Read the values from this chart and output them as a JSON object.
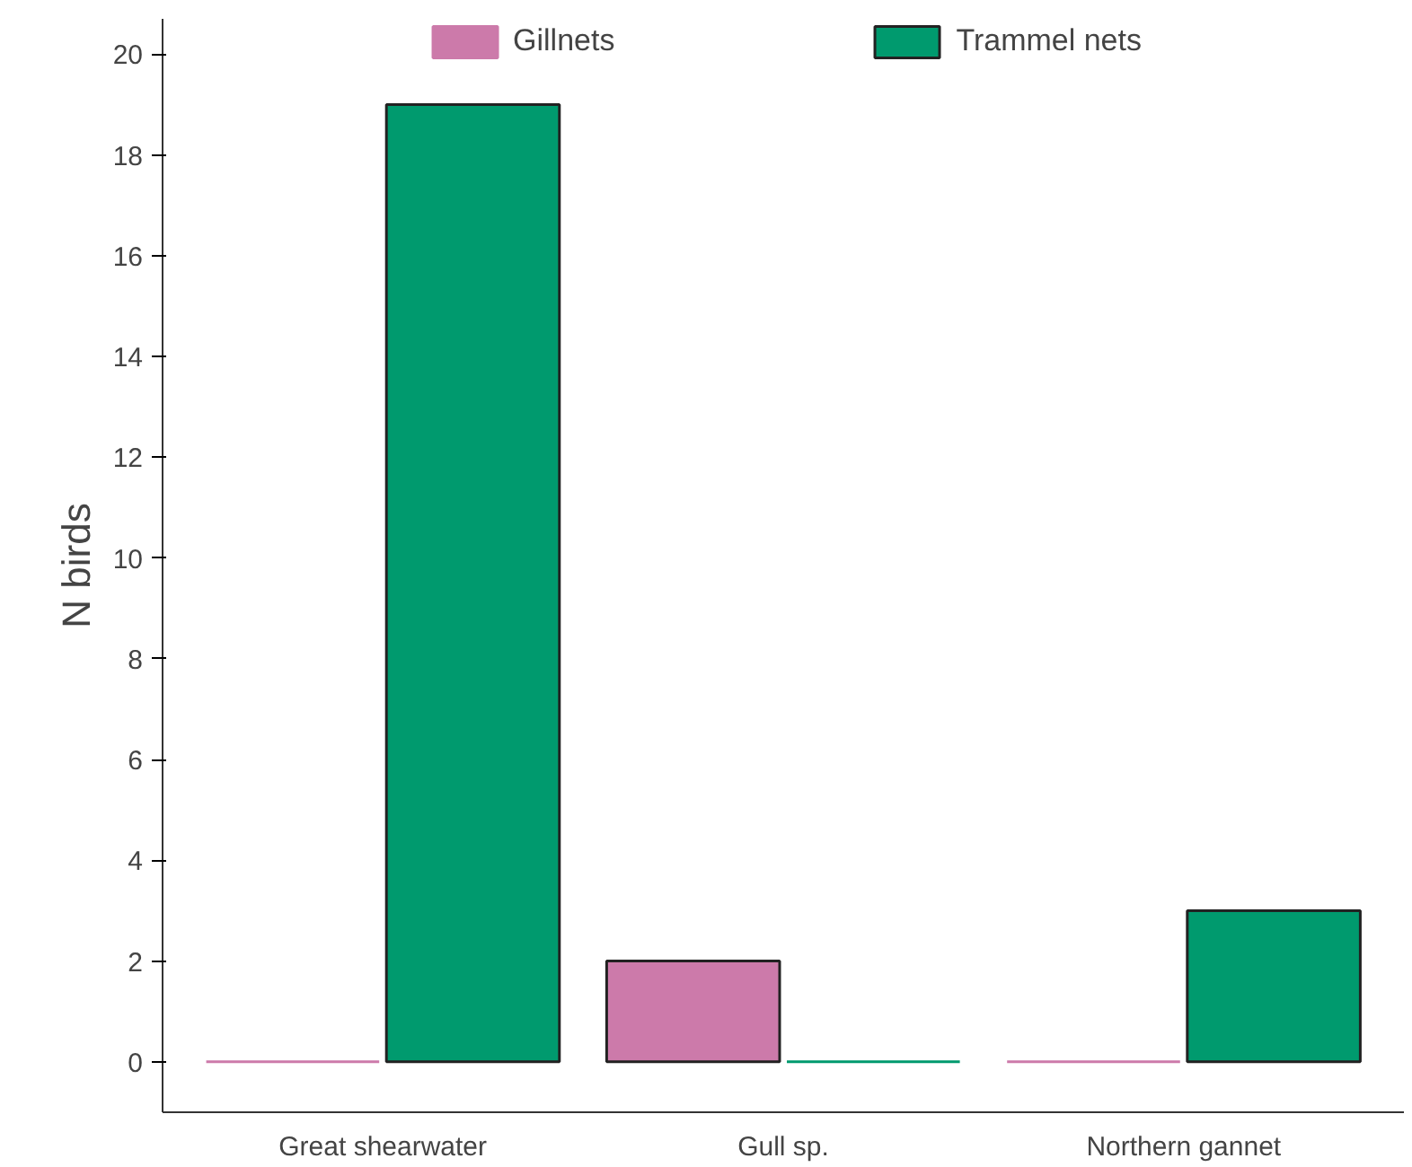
{
  "chart_data": {
    "type": "bar",
    "ylabel": "N birds",
    "categories": [
      "Great shearwater",
      "Gull sp.",
      "Northern gannet"
    ],
    "series": [
      {
        "name": "Gillnets",
        "color": "#cc7aaa",
        "values": [
          0,
          2,
          0
        ]
      },
      {
        "name": "Trammel nets",
        "color": "#009a6e",
        "values": [
          19,
          0,
          3
        ]
      }
    ],
    "ylim": [
      -1,
      20.7
    ],
    "yticks": [
      0,
      2,
      4,
      6,
      8,
      10,
      12,
      14,
      16,
      18,
      20
    ],
    "grid": false,
    "legend": "top"
  }
}
